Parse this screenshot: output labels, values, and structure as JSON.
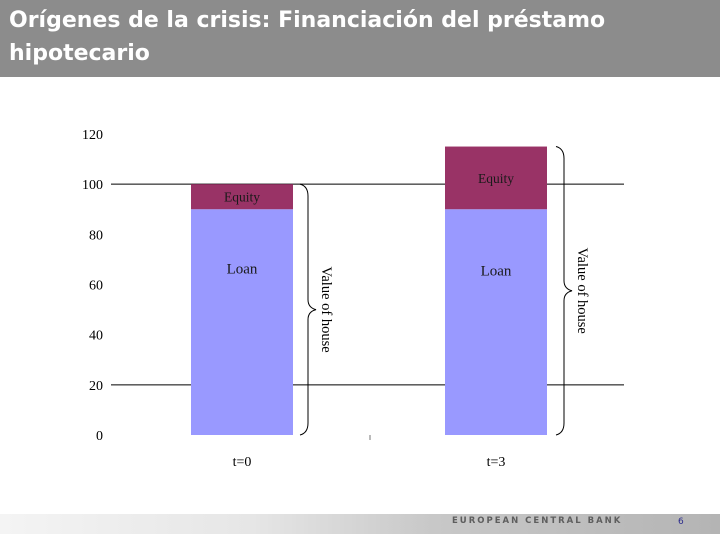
{
  "slide": {
    "title": "Orígenes de la crisis: Financiación del préstamo hipotecario",
    "footer_text": "EUROPEAN CENTRAL BANK",
    "page_number": "6"
  },
  "colors": {
    "title_bar": "#8c8c8c",
    "loan": "#9999ff",
    "equity": "#993366"
  },
  "chart_data": {
    "type": "bar",
    "stacked": true,
    "categories": [
      "t=0",
      "t=3"
    ],
    "series": [
      {
        "name": "Loan",
        "values": [
          90,
          90
        ],
        "color": "#9999ff"
      },
      {
        "name": "Equity",
        "values": [
          10,
          25
        ],
        "color": "#993366"
      }
    ],
    "bracket_label": "Value of house",
    "ylim": [
      0,
      120
    ],
    "yticks": [
      0,
      20,
      40,
      60,
      80,
      100,
      120
    ],
    "reference_lines": [
      20,
      100
    ],
    "xlabel": "",
    "ylabel": ""
  }
}
